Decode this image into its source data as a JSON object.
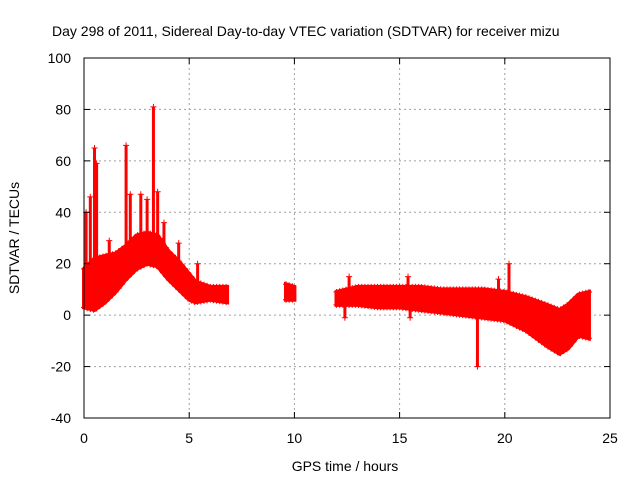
{
  "chart_data": {
    "type": "scatter",
    "title": "Day 298 of 2011, Sidereal Day-to-day VTEC variation (SDTVAR) for receiver mizu",
    "xlabel": "GPS time / hours",
    "ylabel": "SDTVAR / TECUs",
    "xlim": [
      0,
      25
    ],
    "ylim": [
      -40,
      100
    ],
    "x_ticks": [
      0,
      5,
      10,
      15,
      20,
      25
    ],
    "y_ticks": [
      -40,
      -20,
      0,
      20,
      40,
      60,
      80,
      100
    ],
    "x_tick_labels": [
      "0",
      "5",
      "10",
      "15",
      "20",
      "25"
    ],
    "y_tick_labels": [
      "-40",
      "-20",
      "0",
      "20",
      "40",
      "60",
      "80",
      "100"
    ],
    "grid": true,
    "marker": "+",
    "color": "#ff0000",
    "series": [
      {
        "name": "SDTVAR",
        "band": [
          {
            "t": 0.0,
            "lo": 3,
            "hi": 18
          },
          {
            "t": 0.5,
            "lo": 2,
            "hi": 22
          },
          {
            "t": 1.0,
            "lo": 5,
            "hi": 23
          },
          {
            "t": 1.5,
            "lo": 9,
            "hi": 24
          },
          {
            "t": 2.0,
            "lo": 14,
            "hi": 27
          },
          {
            "t": 2.5,
            "lo": 18,
            "hi": 31
          },
          {
            "t": 3.0,
            "lo": 20,
            "hi": 32
          },
          {
            "t": 3.5,
            "lo": 19,
            "hi": 31
          },
          {
            "t": 4.0,
            "lo": 14,
            "hi": 25
          },
          {
            "t": 4.5,
            "lo": 10,
            "hi": 21
          },
          {
            "t": 5.0,
            "lo": 6,
            "hi": 16
          },
          {
            "t": 5.3,
            "lo": 5,
            "hi": 13
          },
          {
            "t": 6.0,
            "lo": 6,
            "hi": 11
          },
          {
            "t": 6.8,
            "lo": 5,
            "hi": 11
          },
          {
            "t": 9.6,
            "lo": 6,
            "hi": 12
          },
          {
            "t": 10.0,
            "lo": 6,
            "hi": 11
          },
          {
            "t": 12.0,
            "lo": 4,
            "hi": 9
          },
          {
            "t": 13.0,
            "lo": 4,
            "hi": 11
          },
          {
            "t": 14.0,
            "lo": 3,
            "hi": 11
          },
          {
            "t": 15.0,
            "lo": 3,
            "hi": 11
          },
          {
            "t": 16.0,
            "lo": 2,
            "hi": 11
          },
          {
            "t": 17.0,
            "lo": 1,
            "hi": 10
          },
          {
            "t": 18.0,
            "lo": 0,
            "hi": 10
          },
          {
            "t": 19.0,
            "lo": -1,
            "hi": 10
          },
          {
            "t": 20.0,
            "lo": -2,
            "hi": 9
          },
          {
            "t": 21.0,
            "lo": -6,
            "hi": 7
          },
          {
            "t": 22.0,
            "lo": -12,
            "hi": 4
          },
          {
            "t": 22.6,
            "lo": -15,
            "hi": 2
          },
          {
            "t": 23.0,
            "lo": -13,
            "hi": 4
          },
          {
            "t": 23.5,
            "lo": -8,
            "hi": 8
          },
          {
            "t": 24.0,
            "lo": -9,
            "hi": 9
          }
        ],
        "segments": [
          [
            0.0,
            6.8
          ],
          [
            9.6,
            10.0
          ],
          [
            12.0,
            24.0
          ]
        ],
        "spikes": [
          {
            "t": 0.1,
            "v": 40
          },
          {
            "t": 0.3,
            "v": 46
          },
          {
            "t": 0.5,
            "v": 65
          },
          {
            "t": 0.6,
            "v": 59
          },
          {
            "t": 1.2,
            "v": 29
          },
          {
            "t": 2.0,
            "v": 66
          },
          {
            "t": 2.2,
            "v": 47
          },
          {
            "t": 2.7,
            "v": 47
          },
          {
            "t": 3.0,
            "v": 45
          },
          {
            "t": 3.3,
            "v": 81
          },
          {
            "t": 3.5,
            "v": 48
          },
          {
            "t": 3.8,
            "v": 36
          },
          {
            "t": 4.5,
            "v": 28
          },
          {
            "t": 5.4,
            "v": 20
          },
          {
            "t": 12.6,
            "v": 15
          },
          {
            "t": 15.4,
            "v": 15
          },
          {
            "t": 19.7,
            "v": 14
          },
          {
            "t": 20.2,
            "v": 20
          },
          {
            "t": 18.7,
            "v": -20
          },
          {
            "t": 12.4,
            "v": -1
          },
          {
            "t": 15.5,
            "v": -1
          }
        ]
      }
    ]
  }
}
